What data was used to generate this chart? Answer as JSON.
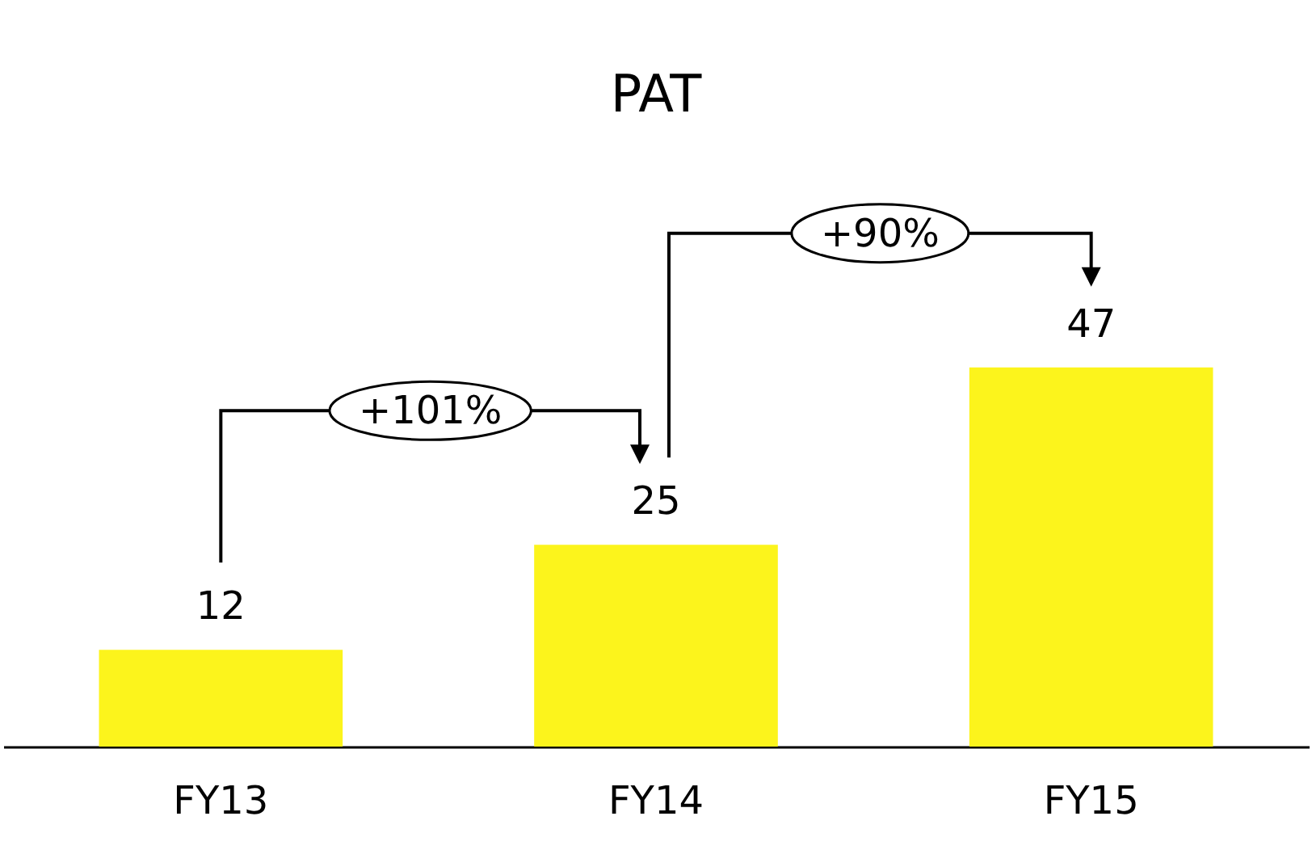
{
  "chart_data": {
    "type": "bar",
    "title": "PAT",
    "categories": [
      "FY13",
      "FY14",
      "FY15"
    ],
    "values": [
      12,
      25,
      47
    ],
    "color": "#fcf41c",
    "data_labels": true,
    "grid": false,
    "annotations": [
      "+101%",
      "+90%"
    ]
  }
}
